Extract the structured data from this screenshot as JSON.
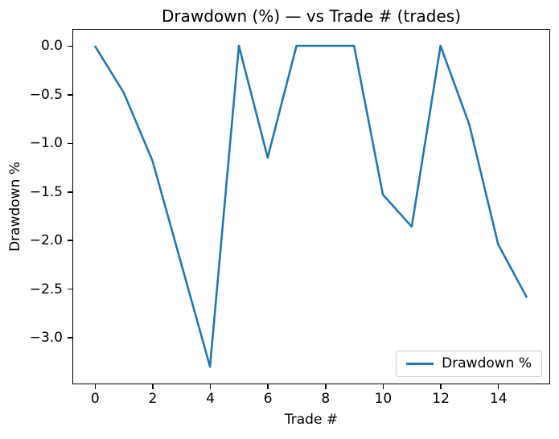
{
  "chart_data": {
    "type": "line",
    "title": "Drawdown (%) — vs Trade # (trades)",
    "xlabel": "Trade #",
    "ylabel": "Drawdown %",
    "x": [
      0,
      1,
      2,
      3,
      4,
      5,
      6,
      7,
      8,
      9,
      10,
      11,
      12,
      13,
      14,
      15
    ],
    "series": [
      {
        "name": "Drawdown %",
        "color": "#1f77b4",
        "values": [
          0.0,
          -0.48,
          -1.18,
          -2.24,
          -3.3,
          0.0,
          -1.15,
          0.0,
          0.0,
          0.0,
          -1.53,
          -1.86,
          0.0,
          -0.81,
          -2.04,
          -2.59
        ]
      }
    ],
    "xlim": [
      -0.75,
      15.75
    ],
    "ylim": [
      -3.465,
      0.165
    ],
    "xticks": [
      0,
      2,
      4,
      6,
      8,
      10,
      12,
      14
    ],
    "yticks": [
      0.0,
      -0.5,
      -1.0,
      -1.5,
      -2.0,
      -2.5,
      -3.0
    ],
    "grid": false,
    "legend": {
      "position": "lower right",
      "entries": [
        "Drawdown %"
      ]
    }
  },
  "colors": {
    "line": "#1f77b4",
    "axis": "#000000",
    "legend_border": "#cccccc",
    "background": "#ffffff"
  }
}
